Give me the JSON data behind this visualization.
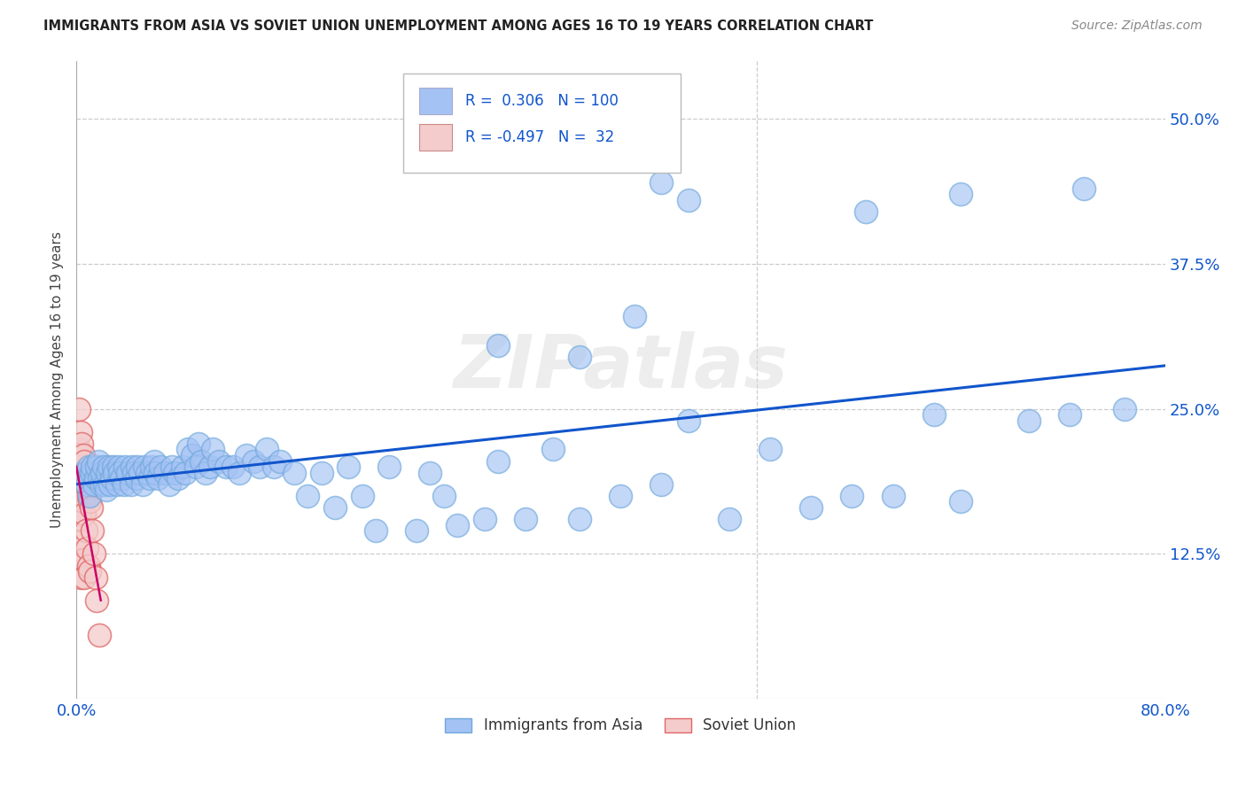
{
  "title": "IMMIGRANTS FROM ASIA VS SOVIET UNION UNEMPLOYMENT AMONG AGES 16 TO 19 YEARS CORRELATION CHART",
  "source": "Source: ZipAtlas.com",
  "ylabel": "Unemployment Among Ages 16 to 19 years",
  "xlim": [
    0.0,
    0.8
  ],
  "ylim": [
    0.0,
    0.55
  ],
  "ytick_vals": [
    0.0,
    0.125,
    0.25,
    0.375,
    0.5
  ],
  "ytick_labels": [
    "",
    "12.5%",
    "25.0%",
    "37.5%",
    "50.0%"
  ],
  "xtick_vals": [
    0.0,
    0.1,
    0.2,
    0.3,
    0.4,
    0.5,
    0.6,
    0.7,
    0.8
  ],
  "xtick_labels": [
    "0.0%",
    "",
    "",
    "",
    "",
    "",
    "",
    "",
    "80.0%"
  ],
  "asia_color": "#a4c2f4",
  "asia_edge_color": "#6fa8dc",
  "soviet_color": "#f4cccc",
  "soviet_edge_color": "#e06666",
  "asia_line_color": "#1155cc",
  "soviet_line_color": "#cc0066",
  "R_asia": 0.306,
  "N_asia": 100,
  "R_soviet": -0.497,
  "N_soviet": 32,
  "watermark": "ZIPatlas",
  "asia_x": [
    0.005,
    0.007,
    0.008,
    0.009,
    0.01,
    0.011,
    0.012,
    0.013,
    0.014,
    0.015,
    0.016,
    0.017,
    0.018,
    0.019,
    0.02,
    0.021,
    0.022,
    0.023,
    0.024,
    0.025,
    0.026,
    0.027,
    0.028,
    0.03,
    0.031,
    0.032,
    0.033,
    0.035,
    0.036,
    0.038,
    0.04,
    0.041,
    0.042,
    0.044,
    0.045,
    0.047,
    0.049,
    0.05,
    0.052,
    0.054,
    0.055,
    0.057,
    0.058,
    0.06,
    0.062,
    0.065,
    0.068,
    0.07,
    0.072,
    0.075,
    0.078,
    0.08,
    0.082,
    0.085,
    0.088,
    0.09,
    0.092,
    0.095,
    0.098,
    0.1,
    0.105,
    0.11,
    0.115,
    0.12,
    0.125,
    0.13,
    0.135,
    0.14,
    0.145,
    0.15,
    0.16,
    0.17,
    0.18,
    0.19,
    0.2,
    0.21,
    0.22,
    0.23,
    0.25,
    0.26,
    0.27,
    0.28,
    0.3,
    0.31,
    0.33,
    0.35,
    0.37,
    0.4,
    0.43,
    0.45,
    0.48,
    0.51,
    0.54,
    0.57,
    0.6,
    0.63,
    0.65,
    0.7,
    0.73,
    0.77
  ],
  "asia_y": [
    0.195,
    0.19,
    0.185,
    0.2,
    0.175,
    0.195,
    0.2,
    0.185,
    0.19,
    0.2,
    0.205,
    0.19,
    0.185,
    0.195,
    0.2,
    0.185,
    0.18,
    0.195,
    0.2,
    0.185,
    0.19,
    0.2,
    0.195,
    0.185,
    0.2,
    0.195,
    0.19,
    0.185,
    0.2,
    0.195,
    0.185,
    0.2,
    0.195,
    0.19,
    0.2,
    0.195,
    0.185,
    0.2,
    0.195,
    0.19,
    0.2,
    0.205,
    0.195,
    0.19,
    0.2,
    0.195,
    0.185,
    0.2,
    0.195,
    0.19,
    0.2,
    0.195,
    0.215,
    0.21,
    0.2,
    0.22,
    0.205,
    0.195,
    0.2,
    0.215,
    0.205,
    0.2,
    0.2,
    0.195,
    0.21,
    0.205,
    0.2,
    0.215,
    0.2,
    0.205,
    0.195,
    0.175,
    0.195,
    0.165,
    0.2,
    0.175,
    0.145,
    0.2,
    0.145,
    0.195,
    0.175,
    0.15,
    0.155,
    0.205,
    0.155,
    0.215,
    0.155,
    0.175,
    0.185,
    0.24,
    0.155,
    0.215,
    0.165,
    0.175,
    0.175,
    0.245,
    0.17,
    0.24,
    0.245,
    0.25
  ],
  "asia_outliers_x": [
    0.31,
    0.37,
    0.41,
    0.43,
    0.45,
    0.58,
    0.65,
    0.74
  ],
  "asia_outliers_y": [
    0.305,
    0.295,
    0.33,
    0.445,
    0.43,
    0.42,
    0.435,
    0.44
  ],
  "soviet_x": [
    0.002,
    0.002,
    0.002,
    0.002,
    0.002,
    0.003,
    0.003,
    0.003,
    0.003,
    0.004,
    0.004,
    0.004,
    0.005,
    0.005,
    0.005,
    0.006,
    0.006,
    0.006,
    0.007,
    0.007,
    0.008,
    0.008,
    0.009,
    0.009,
    0.01,
    0.01,
    0.011,
    0.012,
    0.013,
    0.014,
    0.015,
    0.017
  ],
  "soviet_y": [
    0.25,
    0.215,
    0.185,
    0.155,
    0.12,
    0.23,
    0.195,
    0.155,
    0.105,
    0.22,
    0.18,
    0.135,
    0.21,
    0.17,
    0.12,
    0.205,
    0.16,
    0.105,
    0.195,
    0.145,
    0.185,
    0.13,
    0.175,
    0.115,
    0.17,
    0.11,
    0.165,
    0.145,
    0.125,
    0.105,
    0.085,
    0.055
  ]
}
